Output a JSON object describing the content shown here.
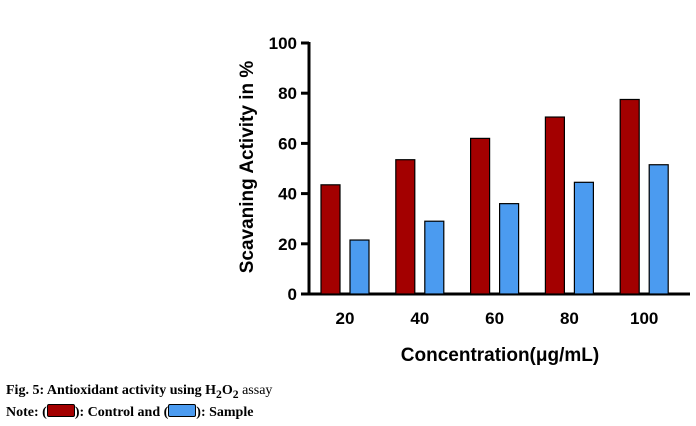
{
  "chart_data": {
    "type": "bar",
    "categories": [
      "20",
      "40",
      "60",
      "80",
      "100"
    ],
    "series": [
      {
        "name": "Control",
        "color": "#a30000",
        "values": [
          43.5,
          53.5,
          62,
          70.5,
          77.5
        ]
      },
      {
        "name": "Sample",
        "color": "#4b9bf0",
        "values": [
          21.5,
          29,
          36,
          44.5,
          51.5
        ]
      }
    ],
    "yticks": [
      "0",
      "20",
      "40",
      "60",
      "80",
      "100"
    ],
    "ylim": [
      0,
      100
    ],
    "ylabel": "Scavaning Activity in %",
    "xlabel": "Concentration(μg/mL)",
    "grid": false
  },
  "caption": {
    "line1_prefix": "Fig. 5: Antioxidant activity using H",
    "sub1": "2",
    "o": "O",
    "sub2": "2",
    "assay": " assay",
    "note_prefix": "Note: (",
    "control_text": "): Control and (",
    "sample_text": "): Sample"
  }
}
